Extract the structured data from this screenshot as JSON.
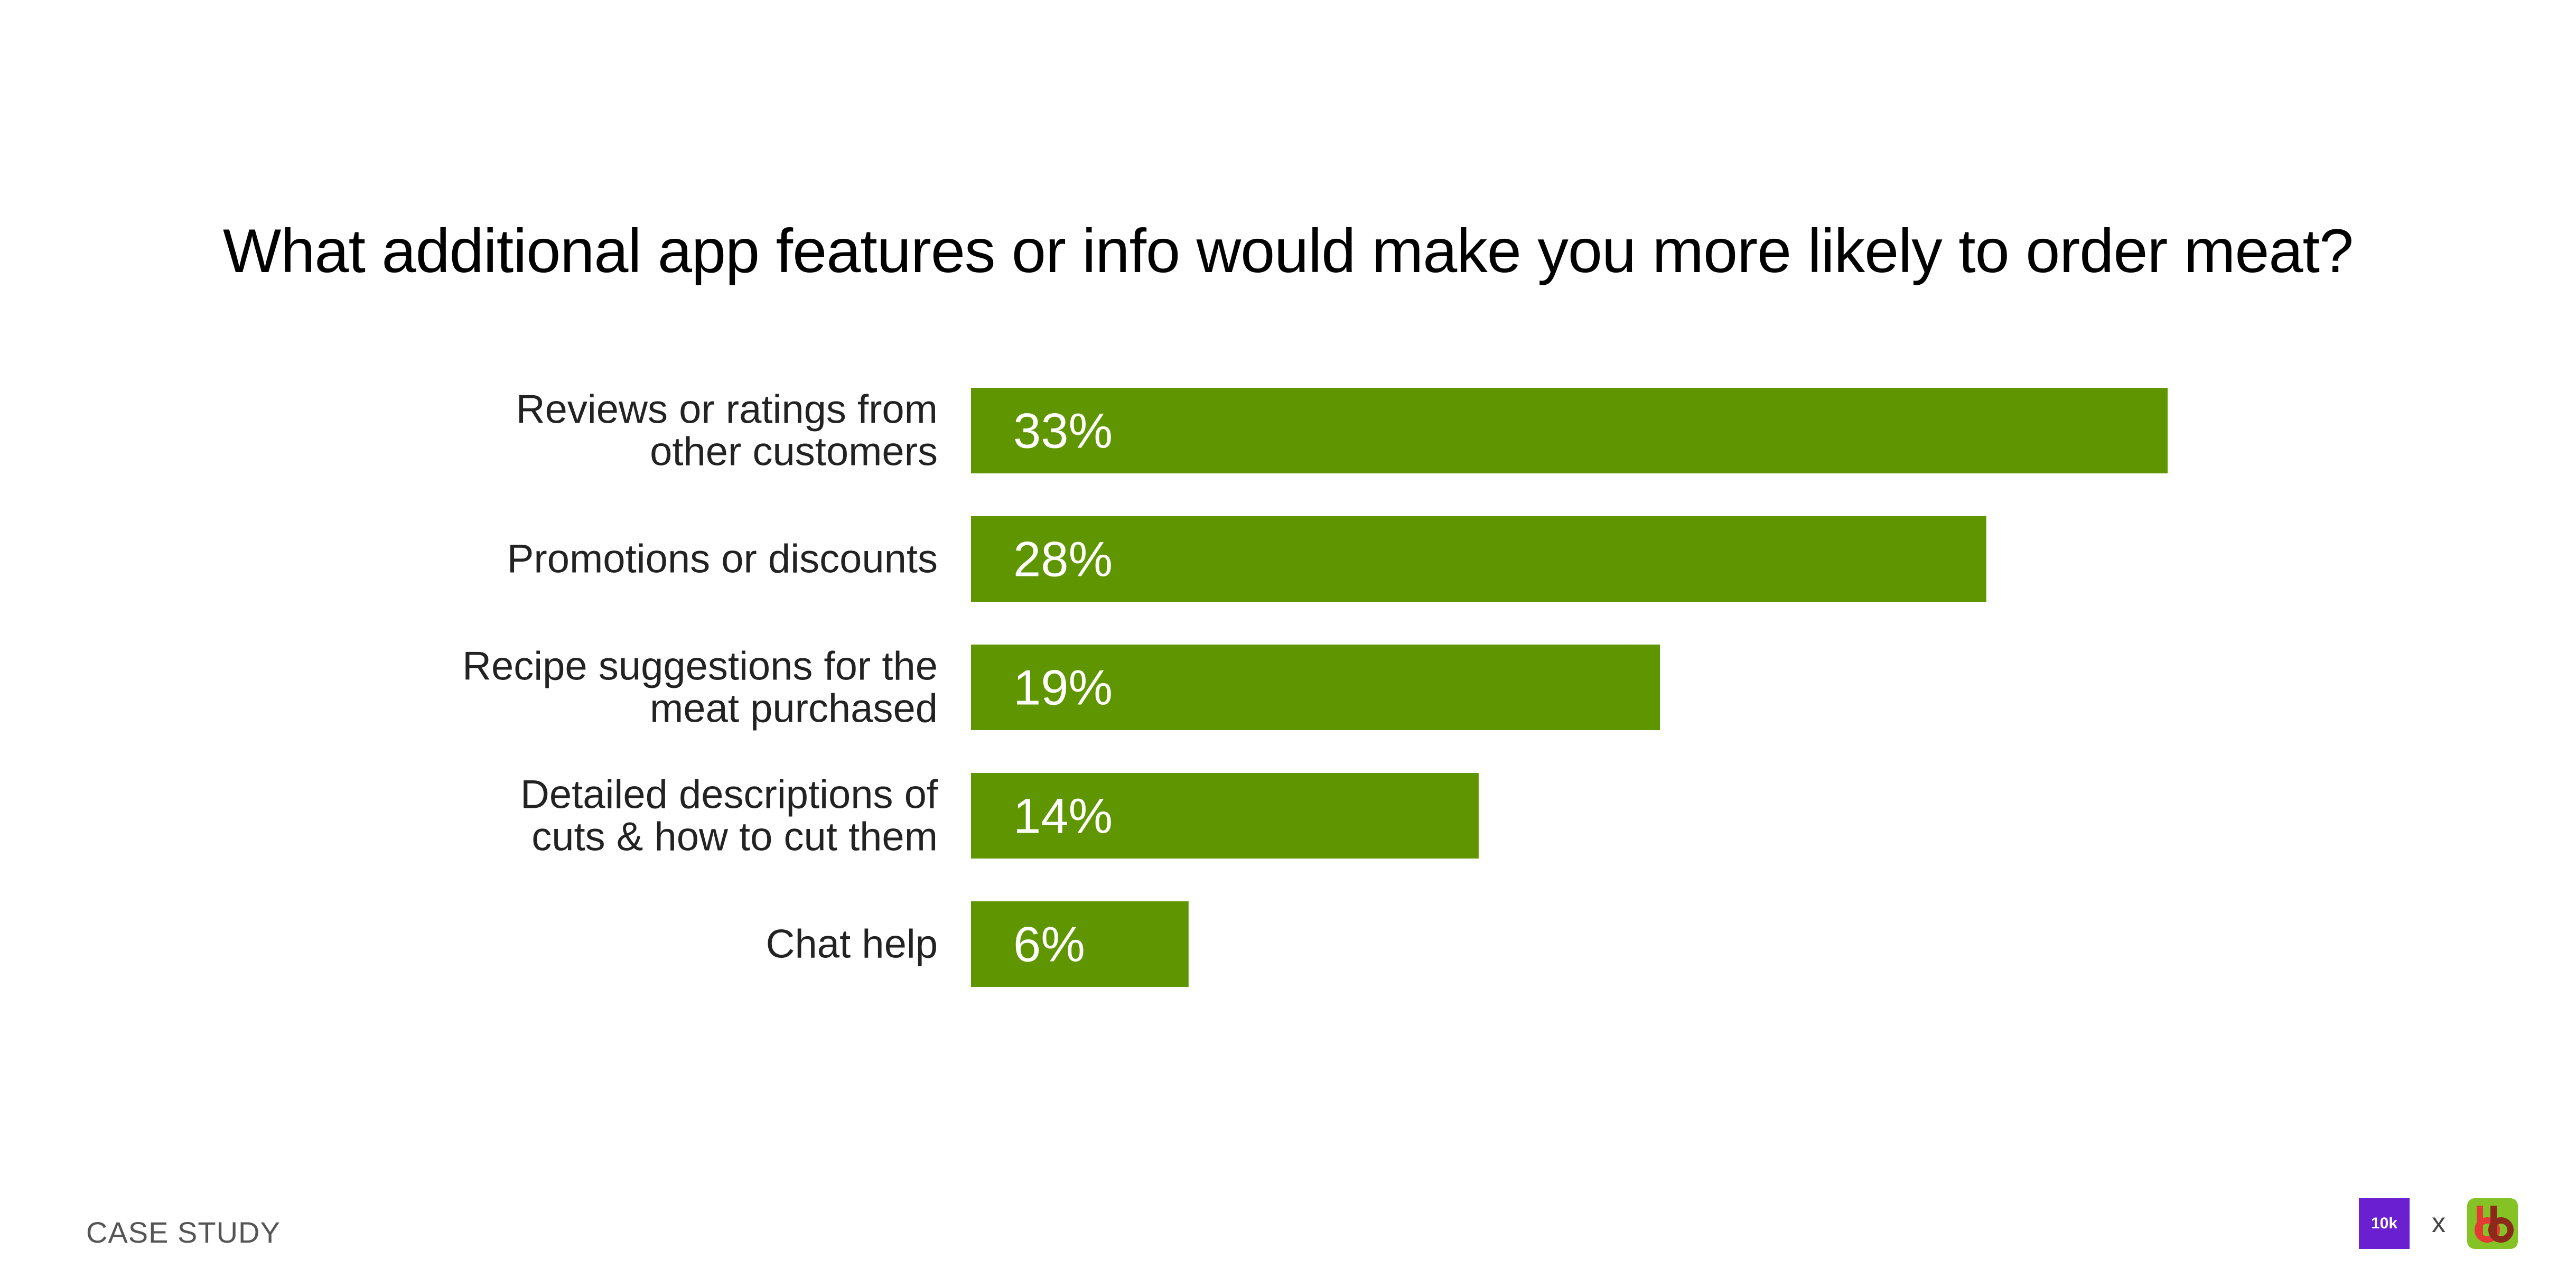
{
  "chart_data": {
    "type": "bar",
    "orientation": "horizontal",
    "title": "What additional app features or info would make you more likely to order meat?",
    "categories": [
      [
        "Reviews or ratings from",
        "other customers"
      ],
      [
        "Promotions or discounts"
      ],
      [
        "Recipe suggestions for the",
        "meat purchased"
      ],
      [
        "Detailed descriptions of",
        "cuts & how to cut them"
      ],
      [
        "Chat help"
      ]
    ],
    "values": [
      33,
      28,
      19,
      14,
      6
    ],
    "value_labels": [
      "33%",
      "28%",
      "19%",
      "14%",
      "6%"
    ],
    "unit": "%",
    "xlim": [
      0,
      33
    ],
    "grid": false,
    "legend": "none",
    "bar_color": "#5f9600"
  },
  "footer": {
    "left_text": "CASE STUDY",
    "logo_left_text": "10k",
    "separator": "x",
    "logo_left_color": "#6a1fd1",
    "logo_right_color": "#84c225"
  }
}
